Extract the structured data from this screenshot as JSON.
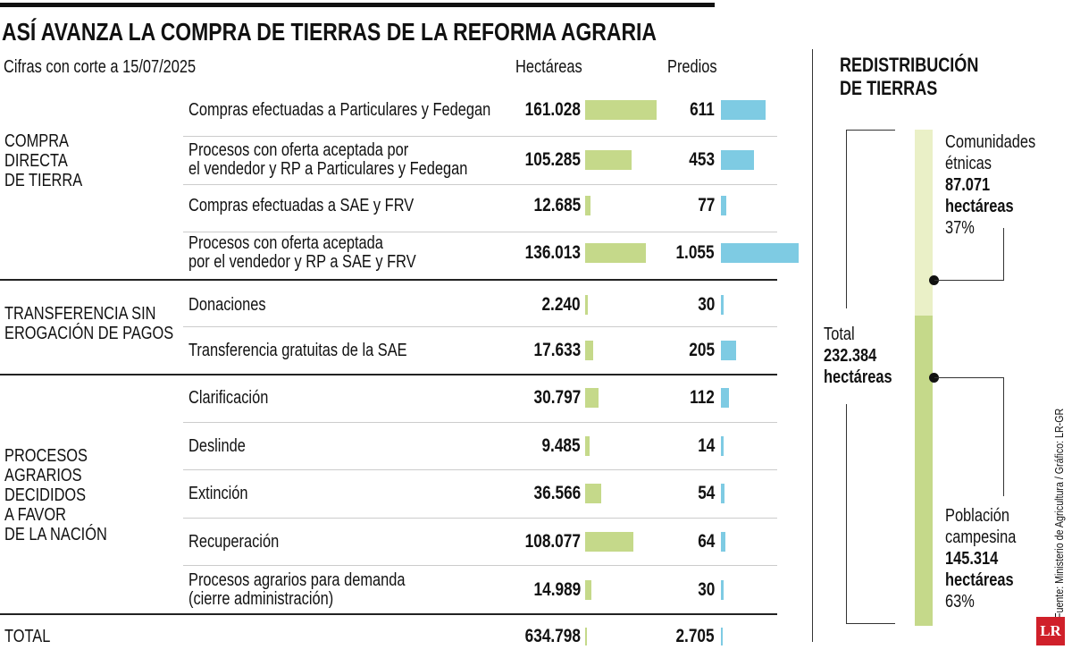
{
  "title": "ASÍ AVANZA LA COMPRA DE TIERRAS DE LA REFORMA AGRARIA",
  "subtitle": "Cifras con corte a 15/07/2025",
  "columns": {
    "hectareas": "Hectáreas",
    "predios": "Predios"
  },
  "colors": {
    "hectareas_bar": "#c5d98a",
    "predios_bar": "#7ecbe3",
    "etnicas_bar": "#eaf0c7",
    "campesina_bar": "#c5d98a",
    "logo": "#d0202a"
  },
  "chart_data": {
    "type": "table",
    "groups": [
      {
        "name_lines": [
          "COMPRA",
          "DIRECTA",
          "DE TIERRA"
        ],
        "rows": [
          {
            "label_lines": [
              "Compras efectuadas a Particulares y Fedegan"
            ],
            "hectareas": 161028,
            "hectareas_text": "161.028",
            "predios": 611,
            "predios_text": "611"
          },
          {
            "label_lines": [
              "Procesos con oferta aceptada por",
              "el vendedor y RP a Particulares y Fedegan"
            ],
            "hectareas": 105285,
            "hectareas_text": "105.285",
            "predios": 453,
            "predios_text": "453"
          },
          {
            "label_lines": [
              "Compras efectuadas a SAE y FRV"
            ],
            "hectareas": 12685,
            "hectareas_text": "12.685",
            "predios": 77,
            "predios_text": "77"
          },
          {
            "label_lines": [
              "Procesos con oferta aceptada",
              "por el vendedor y RP a SAE y FRV"
            ],
            "hectareas": 136013,
            "hectareas_text": "136.013",
            "predios": 1055,
            "predios_text": "1.055"
          }
        ]
      },
      {
        "name_lines": [
          "TRANSFERENCIA SIN",
          "EROGACIÓN DE PAGOS"
        ],
        "rows": [
          {
            "label_lines": [
              "Donaciones"
            ],
            "hectareas": 2240,
            "hectareas_text": "2.240",
            "predios": 30,
            "predios_text": "30"
          },
          {
            "label_lines": [
              "Transferencia gratuitas de la SAE"
            ],
            "hectareas": 17633,
            "hectareas_text": "17.633",
            "predios": 205,
            "predios_text": "205"
          }
        ]
      },
      {
        "name_lines": [
          "PROCESOS",
          "AGRARIOS",
          "DECIDIDOS",
          "A FAVOR",
          "DE LA NACIÓN"
        ],
        "rows": [
          {
            "label_lines": [
              "Clarificación"
            ],
            "hectareas": 30797,
            "hectareas_text": "30.797",
            "predios": 112,
            "predios_text": "112"
          },
          {
            "label_lines": [
              "Deslinde"
            ],
            "hectareas": 9485,
            "hectareas_text": "9.485",
            "predios": 14,
            "predios_text": "14"
          },
          {
            "label_lines": [
              "Extinción"
            ],
            "hectareas": 36566,
            "hectareas_text": "36.566",
            "predios": 54,
            "predios_text": "54"
          },
          {
            "label_lines": [
              "Recuperación"
            ],
            "hectareas": 108077,
            "hectareas_text": "108.077",
            "predios": 64,
            "predios_text": "64"
          },
          {
            "label_lines": [
              "Procesos agrarios para demanda",
              "(cierre administración)"
            ],
            "hectareas": 14989,
            "hectareas_text": "14.989",
            "predios": 30,
            "predios_text": "30"
          }
        ]
      }
    ],
    "total": {
      "label": "TOTAL",
      "hectareas": 634798,
      "hectareas_text": "634.798",
      "predios": 2705,
      "predios_text": "2.705"
    }
  },
  "redistribution": {
    "title_lines": [
      "REDISTRIBUCIÓN",
      "DE TIERRAS"
    ],
    "total_label": "Total",
    "total_value": "232.384",
    "total_unit": "hectáreas",
    "segments": [
      {
        "name_lines": [
          "Comunidades",
          "étnicas"
        ],
        "value": 87071,
        "value_text": "87.071",
        "unit": "hectáreas",
        "percent": "37%"
      },
      {
        "name_lines": [
          "Población",
          "campesina"
        ],
        "value": 145314,
        "value_text": "145.314",
        "unit": "hectáreas",
        "percent": "63%"
      }
    ]
  },
  "source": "Fuente: Ministerio de Agricultura / Gráfico: LR-GR",
  "logo": "LR"
}
